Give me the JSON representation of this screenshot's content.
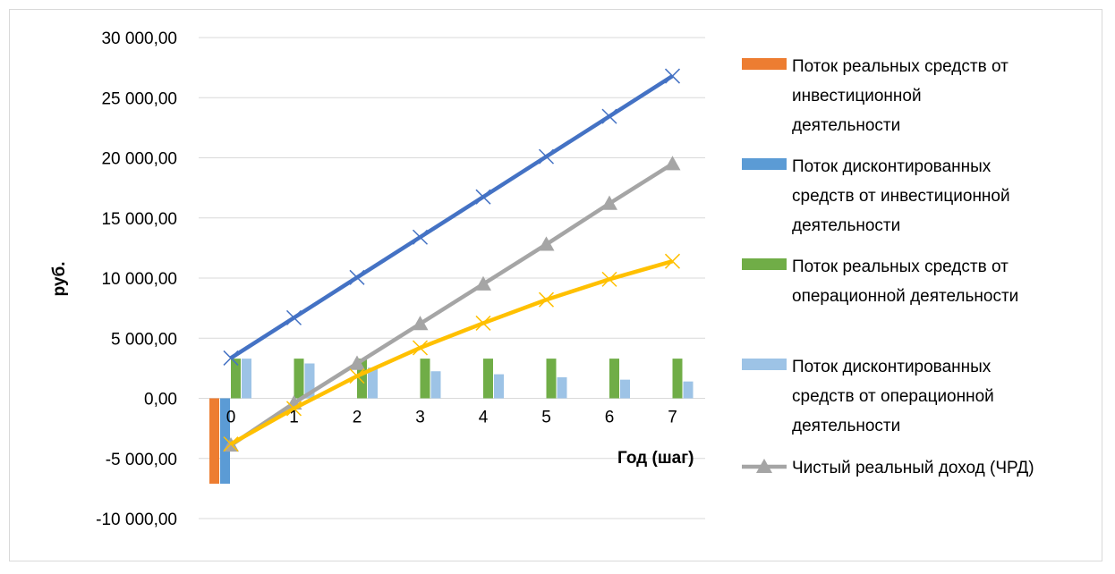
{
  "chart_data": {
    "type": "bar",
    "xlabel": "Год (шаг)",
    "ylabel": "руб.",
    "ylim": [
      -10000,
      30000
    ],
    "ytick_step": 5000,
    "y_tick_labels": [
      "-10 000,00",
      "-5 000,00",
      "0,00",
      "5 000,00",
      "10 000,00",
      "15 000,00",
      "20 000,00",
      "25 000,00",
      "30 000,00"
    ],
    "categories": [
      "0",
      "1",
      "2",
      "3",
      "4",
      "5",
      "6",
      "7"
    ],
    "grid": true,
    "legend_position": "right",
    "series": [
      {
        "name": "Поток реальных средств от инвестиционной деятельности",
        "kind": "bar",
        "color": "#ed7d31",
        "values": [
          -7100,
          0,
          0,
          0,
          0,
          0,
          0,
          0
        ]
      },
      {
        "name": "Поток дисконтированных средств от инвестиционной деятельности",
        "kind": "bar",
        "color": "#5b9bd5",
        "values": [
          -7100,
          0,
          0,
          0,
          0,
          0,
          0,
          0
        ]
      },
      {
        "name": "Поток реальных средств от операционной деятельности",
        "kind": "bar",
        "color": "#70ad47",
        "values": [
          3300,
          3300,
          3300,
          3300,
          3300,
          3300,
          3300,
          3300
        ]
      },
      {
        "name": "Поток дисконтированных средств от операционной деятельности",
        "kind": "bar",
        "color": "#9dc3e6",
        "values": [
          3300,
          2900,
          2550,
          2250,
          2000,
          1750,
          1550,
          1400
        ]
      },
      {
        "name": "",
        "kind": "line",
        "marker": "x",
        "color": "#4472c4",
        "values": [
          3350,
          6700,
          10050,
          13400,
          16750,
          20100,
          23450,
          26800
        ]
      },
      {
        "name": "Чистый реальный доход (ЧРД)",
        "kind": "line",
        "marker": "triangle",
        "color": "#a5a5a5",
        "values": [
          -3900,
          -400,
          2900,
          6200,
          9500,
          12800,
          16200,
          19500
        ]
      },
      {
        "name": "",
        "kind": "line",
        "marker": "x",
        "color": "#ffc000",
        "values": [
          -3800,
          -850,
          1850,
          4200,
          6250,
          8200,
          9900,
          11400
        ]
      }
    ]
  }
}
